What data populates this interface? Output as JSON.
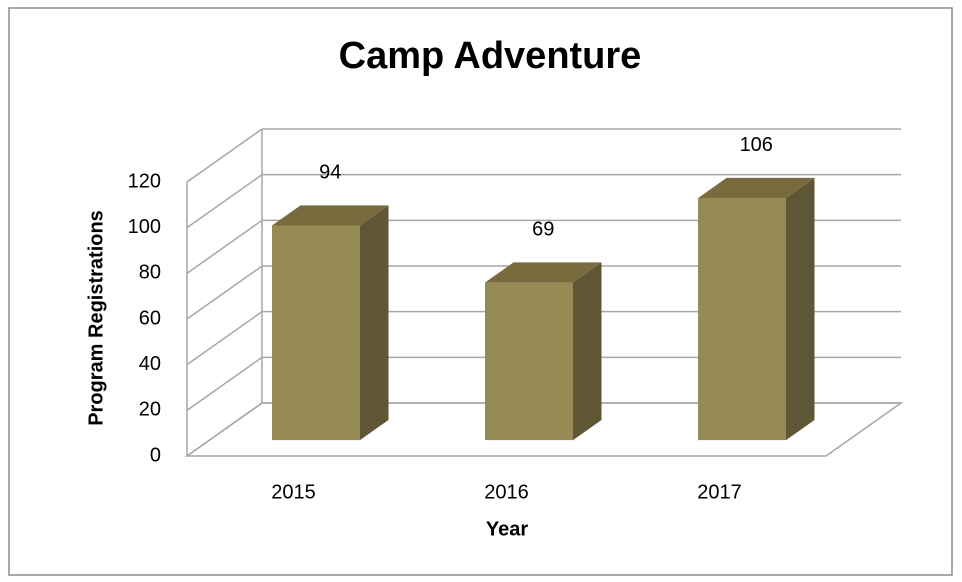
{
  "chart_data": {
    "type": "bar3d",
    "title": "Camp Adventure",
    "x_label": "Year",
    "y_label": "Program Registrations",
    "categories": [
      "2015",
      "2016",
      "2017"
    ],
    "values": [
      94,
      69,
      106
    ],
    "color": "#968a55",
    "side_color": "#5e5635",
    "top_color": "#7a6b3f",
    "ylim": [
      0,
      120
    ],
    "yticks": [
      0,
      20,
      40,
      60,
      80,
      100,
      120
    ],
    "grid": true
  }
}
